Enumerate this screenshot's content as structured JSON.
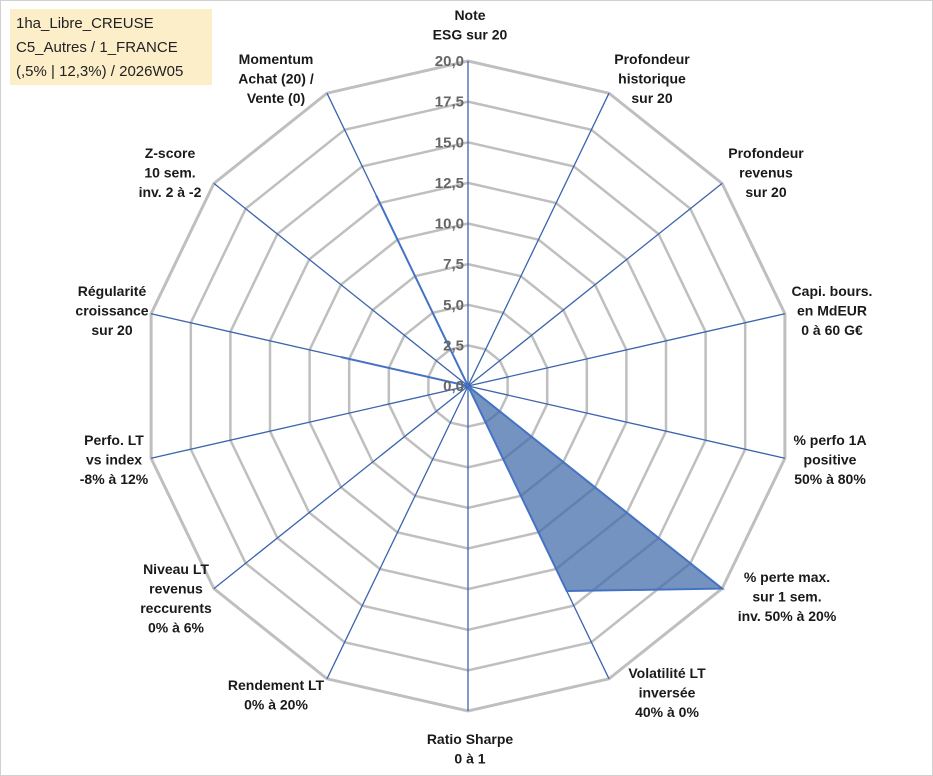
{
  "info_box": {
    "lines": [
      "1ha_Libre_CREUSE",
      "C5_Autres / 1_FRANCE",
      "(,5% | 12,3%) / 2026W05"
    ]
  },
  "colors": {
    "ring": "#bfbfbf",
    "spoke": "#3b64ad",
    "series_fill": "#3e6aa7",
    "series_stroke": "#4472c4",
    "info_box_bg": "#fdeeca"
  },
  "chart_data": {
    "type": "radar",
    "rmin": 0,
    "rmax": 20,
    "tick_step": 2.5,
    "tick_labels": [
      "0,0",
      "2,5",
      "5,0",
      "7,5",
      "10,0",
      "12,5",
      "15,0",
      "17,5",
      "20,0"
    ],
    "grid": true,
    "axes": [
      {
        "label": [
          "Note",
          "ESG sur 20"
        ]
      },
      {
        "label": [
          "Profondeur",
          "historique",
          "sur 20"
        ]
      },
      {
        "label": [
          "Profondeur",
          "revenus",
          "sur 20"
        ]
      },
      {
        "label": [
          "Capi. bours.",
          "en MdEUR",
          "0 à 60 G€"
        ]
      },
      {
        "label": [
          "% perfo 1A",
          "positive",
          "50% à 80%"
        ]
      },
      {
        "label": [
          "% perte max.",
          "sur 1 sem.",
          "inv. 50% à 20%"
        ]
      },
      {
        "label": [
          "Volatilité LT",
          "inversée",
          "40% à 0%"
        ]
      },
      {
        "label": [
          "Ratio Sharpe",
          "0 à 1"
        ]
      },
      {
        "label": [
          "Rendement LT",
          "0% à 20%"
        ]
      },
      {
        "label": [
          "Niveau LT",
          "revenus",
          "reccurents",
          "0% à 6%"
        ]
      },
      {
        "label": [
          "Perfo. LT",
          "vs index",
          "-8% à 12%"
        ]
      },
      {
        "label": [
          "Régularité",
          "croissance",
          "sur 20"
        ]
      },
      {
        "label": [
          "Z-score",
          "10 sem.",
          "inv. 2 à -2"
        ]
      },
      {
        "label": [
          "Momentum",
          "Achat (20) /",
          "Vente (0)"
        ]
      }
    ],
    "series": [
      {
        "values": [
          0,
          0,
          0,
          0,
          0,
          20,
          14,
          0,
          0,
          0,
          0,
          8,
          0,
          13
        ]
      }
    ]
  }
}
